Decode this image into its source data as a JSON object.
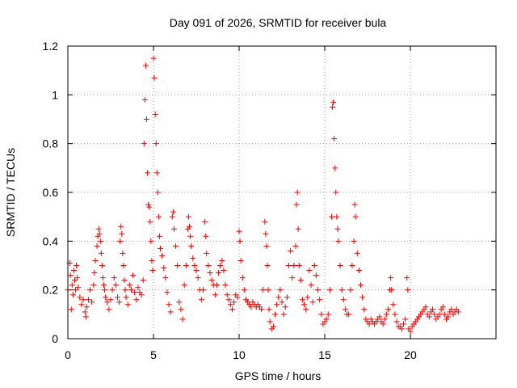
{
  "chart_data": {
    "type": "scatter",
    "title": "Day 091 of 2026, SRMTID for receiver bula",
    "xlabel": "GPS time / hours",
    "ylabel": "SRMTID / TECUs",
    "xlim": [
      0,
      25
    ],
    "ylim": [
      0,
      1.2
    ],
    "xticks": [
      0,
      5,
      10,
      15,
      20
    ],
    "yticks": [
      0,
      0.2,
      0.4,
      0.6,
      0.8,
      1,
      1.2
    ],
    "xtick_labels": [
      "0",
      "5",
      "10",
      "15",
      "20"
    ],
    "ytick_labels": [
      "0",
      "0.2",
      "0.4",
      "0.6",
      "0.8",
      "1",
      "1.2"
    ],
    "grid": true,
    "marker": "+",
    "marker_color": "#ff0000",
    "series": [
      {
        "name": "SRMTID",
        "points": [
          [
            0.0,
            0.2
          ],
          [
            0.1,
            0.31
          ],
          [
            0.15,
            0.26
          ],
          [
            0.2,
            0.12
          ],
          [
            0.25,
            0.22
          ],
          [
            0.3,
            0.18
          ],
          [
            0.35,
            0.28
          ],
          [
            0.4,
            0.24
          ],
          [
            0.45,
            0.2
          ],
          [
            0.5,
            0.3
          ],
          [
            0.55,
            0.25
          ],
          [
            0.6,
            0.21
          ],
          [
            0.7,
            0.17
          ],
          [
            0.8,
            0.14
          ],
          [
            0.9,
            0.16
          ],
          [
            1.0,
            0.11
          ],
          [
            1.05,
            0.09
          ],
          [
            1.1,
            0.13
          ],
          [
            1.2,
            0.16
          ],
          [
            1.3,
            0.2
          ],
          [
            1.4,
            0.15
          ],
          [
            1.5,
            0.22
          ],
          [
            1.55,
            0.27
          ],
          [
            1.6,
            0.32
          ],
          [
            1.7,
            0.38
          ],
          [
            1.75,
            0.42
          ],
          [
            1.8,
            0.45
          ],
          [
            1.85,
            0.43
          ],
          [
            1.9,
            0.4
          ],
          [
            1.95,
            0.35
          ],
          [
            2.0,
            0.3
          ],
          [
            2.05,
            0.25
          ],
          [
            2.1,
            0.22
          ],
          [
            2.15,
            0.2
          ],
          [
            2.2,
            0.17
          ],
          [
            2.3,
            0.15
          ],
          [
            2.4,
            0.12
          ],
          [
            2.5,
            0.16
          ],
          [
            2.6,
            0.2
          ],
          [
            2.7,
            0.25
          ],
          [
            2.8,
            0.22
          ],
          [
            2.9,
            0.17
          ],
          [
            3.0,
            0.15
          ],
          [
            3.05,
            0.4
          ],
          [
            3.1,
            0.46
          ],
          [
            3.15,
            0.43
          ],
          [
            3.2,
            0.35
          ],
          [
            3.25,
            0.3
          ],
          [
            3.3,
            0.24
          ],
          [
            3.35,
            0.2
          ],
          [
            3.4,
            0.17
          ],
          [
            3.5,
            0.14
          ],
          [
            3.6,
            0.22
          ],
          [
            3.7,
            0.2
          ],
          [
            3.8,
            0.26
          ],
          [
            3.9,
            0.19
          ],
          [
            4.0,
            0.16
          ],
          [
            4.1,
            0.21
          ],
          [
            4.2,
            0.19
          ],
          [
            4.3,
            0.18
          ],
          [
            4.4,
            0.24
          ],
          [
            4.45,
            0.8
          ],
          [
            4.5,
            0.98
          ],
          [
            4.55,
            1.12
          ],
          [
            4.6,
            0.9
          ],
          [
            4.65,
            0.68
          ],
          [
            4.7,
            0.55
          ],
          [
            4.75,
            0.54
          ],
          [
            4.8,
            0.48
          ],
          [
            4.85,
            0.4
          ],
          [
            4.9,
            0.32
          ],
          [
            4.95,
            0.28
          ],
          [
            5.0,
            1.15
          ],
          [
            5.05,
            1.07
          ],
          [
            5.1,
            0.92
          ],
          [
            5.15,
            0.8
          ],
          [
            5.2,
            0.68
          ],
          [
            5.25,
            0.6
          ],
          [
            5.3,
            0.5
          ],
          [
            5.35,
            0.42
          ],
          [
            5.4,
            0.37
          ],
          [
            5.5,
            0.34
          ],
          [
            5.6,
            0.29
          ],
          [
            5.7,
            0.25
          ],
          [
            5.8,
            0.19
          ],
          [
            5.9,
            0.14
          ],
          [
            6.0,
            0.11
          ],
          [
            6.1,
            0.5
          ],
          [
            6.15,
            0.52
          ],
          [
            6.2,
            0.45
          ],
          [
            6.3,
            0.38
          ],
          [
            6.4,
            0.3
          ],
          [
            6.5,
            0.15
          ],
          [
            6.6,
            0.12
          ],
          [
            6.7,
            0.08
          ],
          [
            6.8,
            0.22
          ],
          [
            6.9,
            0.3
          ],
          [
            7.0,
            0.45
          ],
          [
            7.05,
            0.5
          ],
          [
            7.1,
            0.46
          ],
          [
            7.15,
            0.42
          ],
          [
            7.2,
            0.38
          ],
          [
            7.3,
            0.33
          ],
          [
            7.4,
            0.3
          ],
          [
            7.5,
            0.28
          ],
          [
            7.6,
            0.25
          ],
          [
            7.7,
            0.2
          ],
          [
            7.8,
            0.16
          ],
          [
            7.9,
            0.2
          ],
          [
            8.0,
            0.48
          ],
          [
            8.05,
            0.42
          ],
          [
            8.1,
            0.35
          ],
          [
            8.2,
            0.3
          ],
          [
            8.3,
            0.27
          ],
          [
            8.4,
            0.24
          ],
          [
            8.5,
            0.22
          ],
          [
            8.6,
            0.18
          ],
          [
            8.7,
            0.22
          ],
          [
            8.8,
            0.27
          ],
          [
            8.9,
            0.3
          ],
          [
            9.0,
            0.32
          ],
          [
            9.1,
            0.28
          ],
          [
            9.2,
            0.22
          ],
          [
            9.3,
            0.18
          ],
          [
            9.4,
            0.16
          ],
          [
            9.5,
            0.14
          ],
          [
            9.6,
            0.12
          ],
          [
            9.7,
            0.15
          ],
          [
            9.8,
            0.18
          ],
          [
            9.9,
            0.17
          ],
          [
            10.0,
            0.44
          ],
          [
            10.05,
            0.4
          ],
          [
            10.1,
            0.32
          ],
          [
            10.2,
            0.25
          ],
          [
            10.3,
            0.2
          ],
          [
            10.4,
            0.16
          ],
          [
            10.5,
            0.15
          ],
          [
            10.6,
            0.14
          ],
          [
            10.7,
            0.13
          ],
          [
            10.8,
            0.15
          ],
          [
            10.9,
            0.14
          ],
          [
            11.0,
            0.13
          ],
          [
            11.1,
            0.14
          ],
          [
            11.2,
            0.13
          ],
          [
            11.3,
            0.12
          ],
          [
            11.4,
            0.2
          ],
          [
            11.5,
            0.48
          ],
          [
            11.55,
            0.43
          ],
          [
            11.6,
            0.38
          ],
          [
            11.65,
            0.3
          ],
          [
            11.7,
            0.2
          ],
          [
            11.75,
            0.12
          ],
          [
            11.8,
            0.07
          ],
          [
            11.9,
            0.04
          ],
          [
            12.0,
            0.05
          ],
          [
            12.1,
            0.1
          ],
          [
            12.2,
            0.14
          ],
          [
            12.3,
            0.17
          ],
          [
            12.4,
            0.2
          ],
          [
            12.5,
            0.15
          ],
          [
            12.6,
            0.1
          ],
          [
            12.7,
            0.13
          ],
          [
            12.8,
            0.17
          ],
          [
            12.9,
            0.3
          ],
          [
            13.0,
            0.36
          ],
          [
            13.1,
            0.25
          ],
          [
            13.2,
            0.3
          ],
          [
            13.3,
            0.38
          ],
          [
            13.35,
            0.55
          ],
          [
            13.4,
            0.6
          ],
          [
            13.45,
            0.45
          ],
          [
            13.5,
            0.3
          ],
          [
            13.6,
            0.24
          ],
          [
            13.7,
            0.16
          ],
          [
            13.8,
            0.14
          ],
          [
            13.9,
            0.12
          ],
          [
            14.0,
            0.17
          ],
          [
            14.1,
            0.28
          ],
          [
            14.2,
            0.22
          ],
          [
            14.3,
            0.15
          ],
          [
            14.4,
            0.3
          ],
          [
            14.5,
            0.26
          ],
          [
            14.6,
            0.2
          ],
          [
            14.7,
            0.16
          ],
          [
            14.8,
            0.1
          ],
          [
            14.9,
            0.06
          ],
          [
            15.0,
            0.07
          ],
          [
            15.1,
            0.08
          ],
          [
            15.2,
            0.1
          ],
          [
            15.3,
            0.2
          ],
          [
            15.4,
            0.5
          ],
          [
            15.45,
            0.95
          ],
          [
            15.5,
            0.97
          ],
          [
            15.55,
            0.82
          ],
          [
            15.6,
            0.7
          ],
          [
            15.65,
            0.6
          ],
          [
            15.7,
            0.5
          ],
          [
            15.75,
            0.45
          ],
          [
            15.8,
            0.4
          ],
          [
            15.9,
            0.3
          ],
          [
            16.0,
            0.2
          ],
          [
            16.1,
            0.16
          ],
          [
            16.2,
            0.12
          ],
          [
            16.3,
            0.1
          ],
          [
            16.4,
            0.1
          ],
          [
            16.5,
            0.2
          ],
          [
            16.6,
            0.3
          ],
          [
            16.7,
            0.4
          ],
          [
            16.75,
            0.55
          ],
          [
            16.8,
            0.5
          ],
          [
            16.9,
            0.35
          ],
          [
            17.0,
            0.28
          ],
          [
            17.1,
            0.22
          ],
          [
            17.2,
            0.17
          ],
          [
            17.3,
            0.12
          ],
          [
            17.4,
            0.08
          ],
          [
            17.5,
            0.07
          ],
          [
            17.6,
            0.06
          ],
          [
            17.7,
            0.08
          ],
          [
            17.8,
            0.07
          ],
          [
            17.9,
            0.06
          ],
          [
            18.0,
            0.07
          ],
          [
            18.1,
            0.08
          ],
          [
            18.2,
            0.09
          ],
          [
            18.3,
            0.07
          ],
          [
            18.4,
            0.06
          ],
          [
            18.5,
            0.08
          ],
          [
            18.6,
            0.1
          ],
          [
            18.7,
            0.12
          ],
          [
            18.8,
            0.2
          ],
          [
            18.85,
            0.25
          ],
          [
            18.9,
            0.2
          ],
          [
            19.0,
            0.14
          ],
          [
            19.1,
            0.1
          ],
          [
            19.2,
            0.07
          ],
          [
            19.3,
            0.05
          ],
          [
            19.4,
            0.05
          ],
          [
            19.5,
            0.04
          ],
          [
            19.6,
            0.06
          ],
          [
            19.7,
            0.08
          ],
          [
            19.8,
            0.25
          ],
          [
            19.85,
            0.2
          ],
          [
            19.9,
            0.04
          ],
          [
            20.0,
            0.03
          ],
          [
            20.1,
            0.05
          ],
          [
            20.2,
            0.06
          ],
          [
            20.3,
            0.07
          ],
          [
            20.4,
            0.08
          ],
          [
            20.5,
            0.09
          ],
          [
            20.6,
            0.1
          ],
          [
            20.7,
            0.11
          ],
          [
            20.8,
            0.12
          ],
          [
            20.9,
            0.13
          ],
          [
            21.0,
            0.1
          ],
          [
            21.1,
            0.09
          ],
          [
            21.2,
            0.11
          ],
          [
            21.3,
            0.12
          ],
          [
            21.4,
            0.1
          ],
          [
            21.5,
            0.08
          ],
          [
            21.6,
            0.09
          ],
          [
            21.7,
            0.1
          ],
          [
            21.8,
            0.12
          ],
          [
            21.9,
            0.13
          ],
          [
            22.0,
            0.1
          ],
          [
            22.1,
            0.08
          ],
          [
            22.2,
            0.09
          ],
          [
            22.3,
            0.11
          ],
          [
            22.4,
            0.12
          ],
          [
            22.5,
            0.1
          ],
          [
            22.6,
            0.11
          ],
          [
            22.7,
            0.12
          ],
          [
            22.8,
            0.11
          ]
        ]
      }
    ]
  }
}
